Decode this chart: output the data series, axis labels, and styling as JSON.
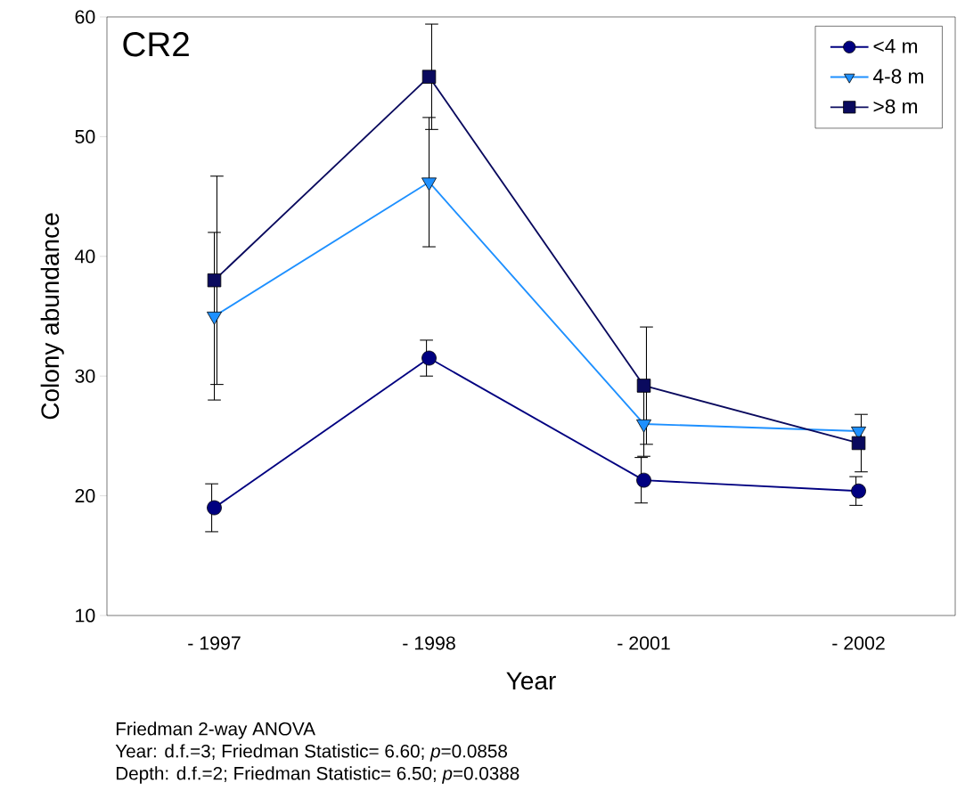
{
  "chart_data": {
    "type": "line",
    "xlabel": "Year",
    "ylabel": "Colony abundance",
    "categories": [
      "- 1997",
      "- 1998",
      "- 2001",
      "- 2002"
    ],
    "series": [
      {
        "name": "<4 m",
        "color": "#000080",
        "marker": "circle",
        "values": [
          19,
          31.5,
          21.3,
          20.4
        ],
        "errors": [
          2,
          1.5,
          1.9,
          1.2
        ]
      },
      {
        "name": "4-8 m",
        "color": "#1e90ff",
        "marker": "triangle",
        "values": [
          35,
          46.2,
          26,
          25.4
        ],
        "errors": [
          7,
          5.4,
          2.7,
          null
        ]
      },
      {
        "name": ">8 m",
        "color": "#0a0a5e",
        "marker": "square",
        "values": [
          38,
          55,
          29.2,
          24.4
        ],
        "errors": [
          8.7,
          4.4,
          4.9,
          2.4
        ]
      }
    ],
    "ylim": [
      10,
      60
    ],
    "yticks": [
      10,
      20,
      30,
      40,
      50,
      60
    ],
    "grid": false,
    "legend": "top right",
    "line_style": "solid",
    "annotations": [
      "CR2",
      "Friedman 2-way ANOVA",
      "Year: d.f.=3; Friedman Statistic= 6.60; *p*=0.0858",
      "Depth: d.f.=2; Friedman Statistic= 6.50; *p*=0.0388"
    ]
  }
}
